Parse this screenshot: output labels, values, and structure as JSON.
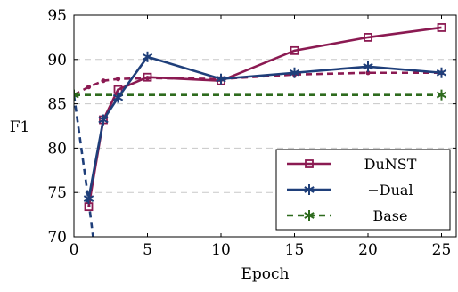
{
  "chart_data": {
    "type": "line",
    "xlabel": "Epoch",
    "ylabel": "F1",
    "xlim": [
      0,
      26
    ],
    "ylim": [
      70,
      95
    ],
    "xticks": [
      0,
      5,
      10,
      15,
      20,
      25
    ],
    "yticks": [
      70,
      75,
      80,
      85,
      90,
      95
    ],
    "grid": "horizontal dashed",
    "legend_position": "bottom-right",
    "series": [
      {
        "name": "DuNST",
        "color": "#8b1a52",
        "marker": "square",
        "line_style": "solid",
        "solid": {
          "x": [
            1,
            2,
            3,
            5,
            10,
            15,
            20,
            25
          ],
          "y": [
            73.4,
            83.2,
            86.6,
            88.0,
            87.6,
            91.0,
            92.5,
            93.6
          ]
        },
        "dashed": {
          "x": [
            0,
            1,
            2,
            3,
            5,
            10,
            15,
            20,
            25
          ],
          "y": [
            86.0,
            86.9,
            87.6,
            87.8,
            87.9,
            87.8,
            88.3,
            88.5,
            88.5
          ]
        }
      },
      {
        "name": "−Dual",
        "color": "#1f3f7a",
        "marker": "star",
        "line_style": "solid",
        "solid": {
          "x": [
            1,
            2,
            3,
            5,
            10,
            15,
            20,
            25
          ],
          "y": [
            74.3,
            83.2,
            85.7,
            90.3,
            87.8,
            88.5,
            89.2,
            88.5
          ]
        },
        "dashed": {
          "x": [
            0,
            1,
            1.3
          ],
          "y": [
            86.0,
            74.0,
            70.0
          ]
        }
      },
      {
        "name": "Base",
        "color": "#2e6b1e",
        "marker": "star",
        "line_style": "dashed",
        "solid": {
          "x": [],
          "y": []
        },
        "dashed": {
          "x": [
            0,
            25
          ],
          "y": [
            86.0,
            86.0
          ]
        }
      }
    ]
  }
}
